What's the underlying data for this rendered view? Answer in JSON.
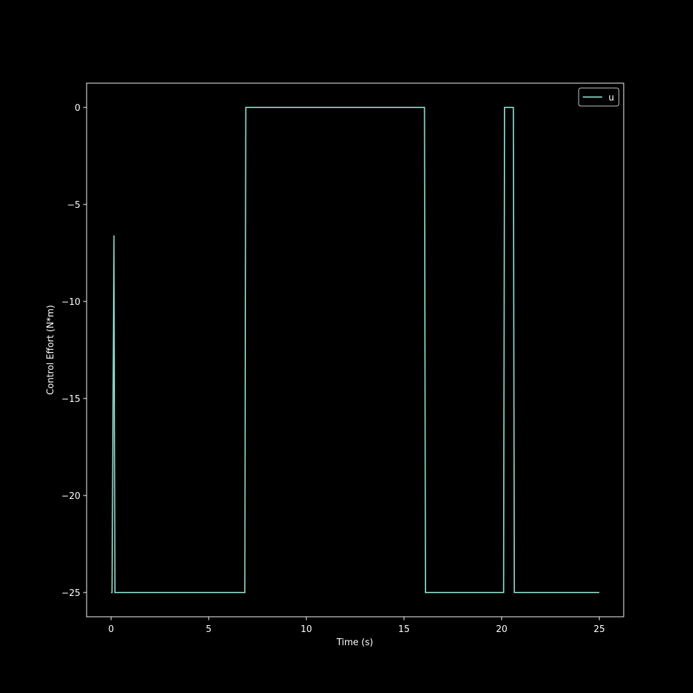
{
  "chart_data": {
    "type": "line",
    "title": "",
    "xlabel": "Time (s)",
    "ylabel": "Control Effort (N*m)",
    "xlim": [
      -1.25,
      26.25
    ],
    "ylim": [
      -26.25,
      1.25
    ],
    "xticks": [
      0,
      5,
      10,
      15,
      20,
      25
    ],
    "yticks": [
      0,
      -5,
      -10,
      -15,
      -20,
      -25
    ],
    "xtick_labels": [
      "0",
      "5",
      "10",
      "15",
      "20",
      "25"
    ],
    "ytick_labels": [
      "0",
      "−5",
      "−10",
      "−15",
      "−20",
      "−25"
    ],
    "grid": false,
    "legend_position": "top-right",
    "series": [
      {
        "name": "u",
        "color": "#8dd3c7",
        "x": [
          0,
          0.05,
          0.05,
          0.15,
          0.2,
          0.2,
          6.85,
          6.9,
          6.9,
          16.05,
          16.1,
          16.1,
          20.1,
          20.15,
          20.15,
          20.6,
          20.65,
          20.65,
          25
        ],
        "y": [
          -25,
          -25,
          -25,
          -6.6,
          -25,
          -25,
          -25,
          0,
          0,
          0,
          -25,
          -25,
          -25,
          0,
          0,
          0,
          -25,
          -25,
          -25
        ]
      }
    ]
  }
}
